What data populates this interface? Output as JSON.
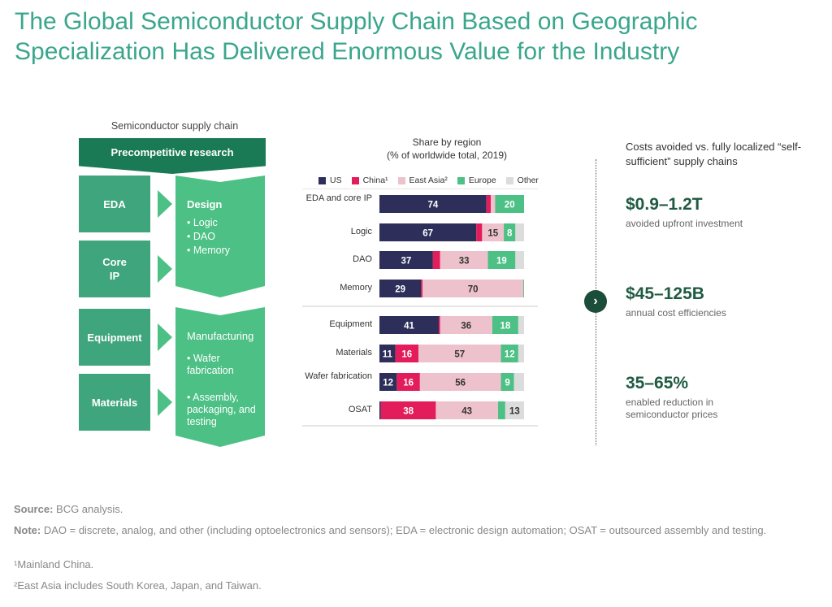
{
  "title": "The Global Semiconductor Supply Chain Based on Geographic Specialization Has Delivered Enormous Value for the Industry",
  "supply_chain": {
    "caption": "Semiconductor supply chain",
    "precompetitive": "Precompetitive research",
    "inputs_design": [
      "EDA",
      "Core IP"
    ],
    "design": {
      "title": "Design",
      "items": [
        "• Logic",
        "• DAO",
        "• Memory"
      ]
    },
    "inputs_manufacturing": [
      "Equipment",
      "Materials"
    ],
    "manufacturing": {
      "title": "Manufacturing",
      "items": [
        "• Wafer fabrication",
        "• Assembly, packaging, and testing"
      ]
    }
  },
  "chart_data": {
    "type": "bar",
    "orientation": "horizontal",
    "stacked": true,
    "title": "Share by region",
    "subtitle": "(% of worldwide total, 2019)",
    "xlim": [
      0,
      100
    ],
    "legend_position": "top",
    "categories": [
      "EDA and core IP",
      "Logic",
      "DAO",
      "Memory",
      "Equipment",
      "Materials",
      "Wafer fabrication",
      "OSAT"
    ],
    "series": [
      {
        "name": "US",
        "color": "#2d2e5a",
        "values": [
          74,
          67,
          37,
          29,
          41,
          11,
          12,
          1
        ],
        "labels": [
          "74",
          "67",
          "37",
          "29",
          "41",
          "11",
          "12",
          ""
        ]
      },
      {
        "name": "China¹",
        "color": "#e31d5b",
        "values": [
          3,
          4,
          5,
          1,
          1,
          16,
          16,
          38
        ],
        "labels": [
          "",
          "",
          "",
          "",
          "",
          "16",
          "16",
          "38"
        ]
      },
      {
        "name": "East Asia²",
        "color": "#eec2cc",
        "values": [
          3,
          15,
          33,
          70,
          36,
          57,
          56,
          43
        ],
        "labels": [
          "",
          "15",
          "33",
          "70",
          "36",
          "57",
          "56",
          "43"
        ]
      },
      {
        "name": "Europe",
        "color": "#4cc085",
        "values": [
          20,
          8,
          19,
          0.5,
          18,
          12,
          9,
          5
        ],
        "labels": [
          "20",
          "8",
          "19",
          "",
          "18",
          "12",
          "9",
          ""
        ]
      },
      {
        "name": "Other",
        "color": "#dcdcdc",
        "values": [
          0,
          6,
          6,
          0,
          4,
          4,
          7,
          13
        ],
        "labels": [
          "",
          "",
          "",
          "",
          "",
          "",
          "",
          "13"
        ]
      }
    ]
  },
  "costs": {
    "header": "Costs avoided vs. fully localized “self-sufficient” supply chains",
    "items": [
      {
        "value": "$0.9–1.2T",
        "label": "avoided upfront investment"
      },
      {
        "value": "$45–125B",
        "label": "annual cost efficiencies"
      },
      {
        "value": "35–65%",
        "label": "enabled reduction in semiconductor prices"
      }
    ],
    "button_icon": "chevron-right-icon"
  },
  "footnotes": {
    "source_label": "Source:",
    "source_text": " BCG analysis.",
    "note_label": "Note:",
    "note_text": " DAO = discrete, analog, and other (including optoelectronics and sensors); EDA = electronic design automation; OSAT = outsourced assembly and testing.",
    "fn1": "¹Mainland China.",
    "fn2": "²East Asia includes South Korea, Japan, and Taiwan."
  }
}
